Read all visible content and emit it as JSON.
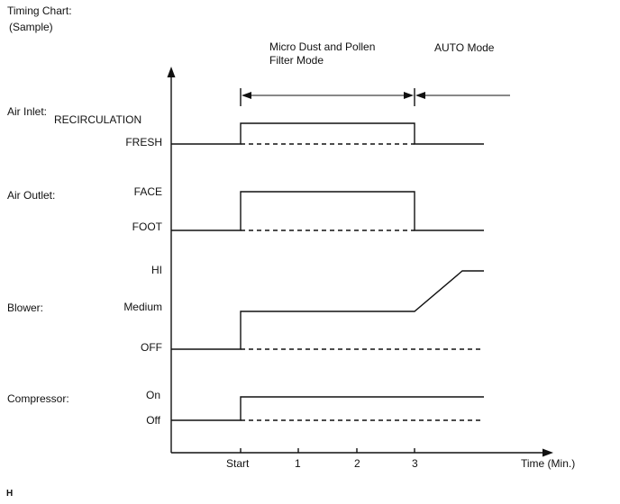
{
  "header": {
    "title": "Timing Chart:",
    "subtitle": "(Sample)"
  },
  "modes": {
    "micro_dust": [
      "Micro Dust and Pollen",
      "Filter Mode"
    ],
    "auto": "AUTO Mode"
  },
  "rows": {
    "air_inlet": {
      "label": "Air Inlet:",
      "high": "RECIRCULATION",
      "low": "FRESH"
    },
    "air_outlet": {
      "label": "Air Outlet:",
      "high": "FACE",
      "low": "FOOT"
    },
    "blower": {
      "label": "Blower:",
      "high": "HI",
      "mid": "Medium",
      "low": "OFF"
    },
    "compressor": {
      "label": "Compressor:",
      "high": "On",
      "low": "Off"
    }
  },
  "x_axis": {
    "ticks": [
      "Start",
      "1",
      "2",
      "3"
    ],
    "label": "Time (Min.)"
  },
  "footer": {
    "mark": "H"
  },
  "chart_data": {
    "type": "line",
    "x": [
      "Start",
      "1",
      "2",
      "3"
    ],
    "xlabel": "Time (Min.)",
    "series": [
      {
        "name": "Air Inlet:",
        "states": [
          "FRESH",
          "RECIRCULATION",
          "RECIRCULATION",
          "FRESH"
        ]
      },
      {
        "name": "Air Outlet:",
        "states": [
          "FOOT",
          "FACE",
          "FACE",
          "FOOT"
        ]
      },
      {
        "name": "Blower:",
        "states": [
          "OFF",
          "Medium",
          "Medium",
          "HI"
        ]
      },
      {
        "name": "Compressor:",
        "states": [
          "Off",
          "On",
          "On",
          "On"
        ]
      }
    ]
  }
}
